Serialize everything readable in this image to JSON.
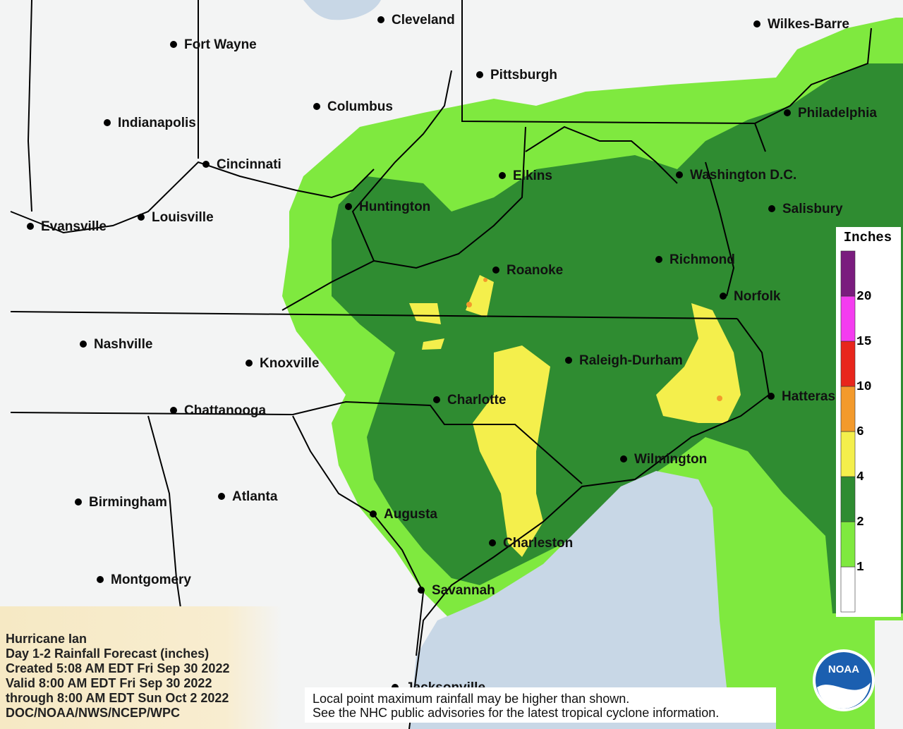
{
  "cities": [
    "Cleveland",
    "Wilkes-Barre",
    "Fort Wayne",
    "Pittsburgh",
    "Columbus",
    "Philadelphia",
    "Indianapolis",
    "Elkins",
    "Washington D.C.",
    "Cincinnati",
    "Huntington",
    "Salisbury",
    "Evansville",
    "Louisville",
    "Richmond",
    "Roanoke",
    "Norfolk",
    "Nashville",
    "Raleigh-Durham",
    "Knoxville",
    "Hatteras",
    "Charlotte",
    "Chattanooga",
    "Wilmington",
    "Atlanta",
    "Birmingham",
    "Augusta",
    "Charleston",
    "Montgomery",
    "Savannah",
    "Jacksonville"
  ],
  "legend": {
    "title": "Inches",
    "ticks": [
      1,
      2,
      4,
      6,
      10,
      15,
      20
    ],
    "colors": [
      "#ffffff",
      "#7fe93f",
      "#2f8c31",
      "#f4ef4c",
      "#f39a2c",
      "#e8261c",
      "#f43cf0",
      "#7a1c7e"
    ]
  },
  "info": [
    "Hurricane Ian",
    "Day 1-2 Rainfall Forecast (inches)",
    "Created 5:08 AM EDT Fri Sep 30 2022",
    "Valid 8:00 AM EDT Fri Sep 30 2022",
    "through 8:00 AM EDT Sun Oct 2 2022",
    "DOC/NOAA/NWS/NCEP/WPC"
  ],
  "disclaimer": [
    "Local point maximum rainfall may be higher than shown.",
    "See the NHC public advisories for the latest tropical cyclone information."
  ],
  "logo": "NOAA"
}
